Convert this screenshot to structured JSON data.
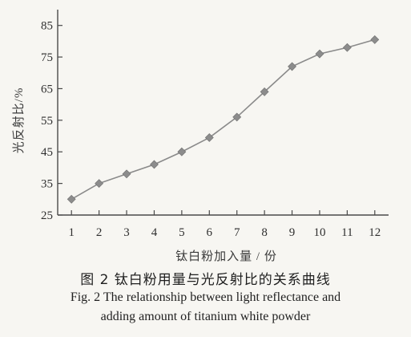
{
  "chart_data": {
    "type": "line",
    "title": "",
    "xlabel": "钛白粉加入量 / 份",
    "ylabel": "光反射比/%",
    "x": [
      1,
      2,
      3,
      4,
      5,
      6,
      7,
      8,
      9,
      10,
      11,
      12
    ],
    "series": [
      {
        "values": [
          30,
          35,
          38,
          41,
          45,
          49.5,
          56,
          64,
          72,
          76,
          78,
          80.5
        ]
      }
    ],
    "xticks": [
      1,
      2,
      3,
      4,
      5,
      6,
      7,
      8,
      9,
      10,
      11,
      12
    ],
    "yticks": [
      25,
      35,
      45,
      55,
      65,
      75,
      85
    ],
    "xlim": [
      0.5,
      12.5
    ],
    "ylim": [
      25,
      90
    ],
    "grid": false,
    "legend": "none",
    "marker": "diamond",
    "line_color": "#8a8a8a"
  },
  "caption": {
    "cn": "图 2   钛白粉用量与光反射比的关系曲线",
    "en_line1": "Fig. 2    The relationship between light reflectance and",
    "en_line2": "adding amount of titanium white powder"
  }
}
